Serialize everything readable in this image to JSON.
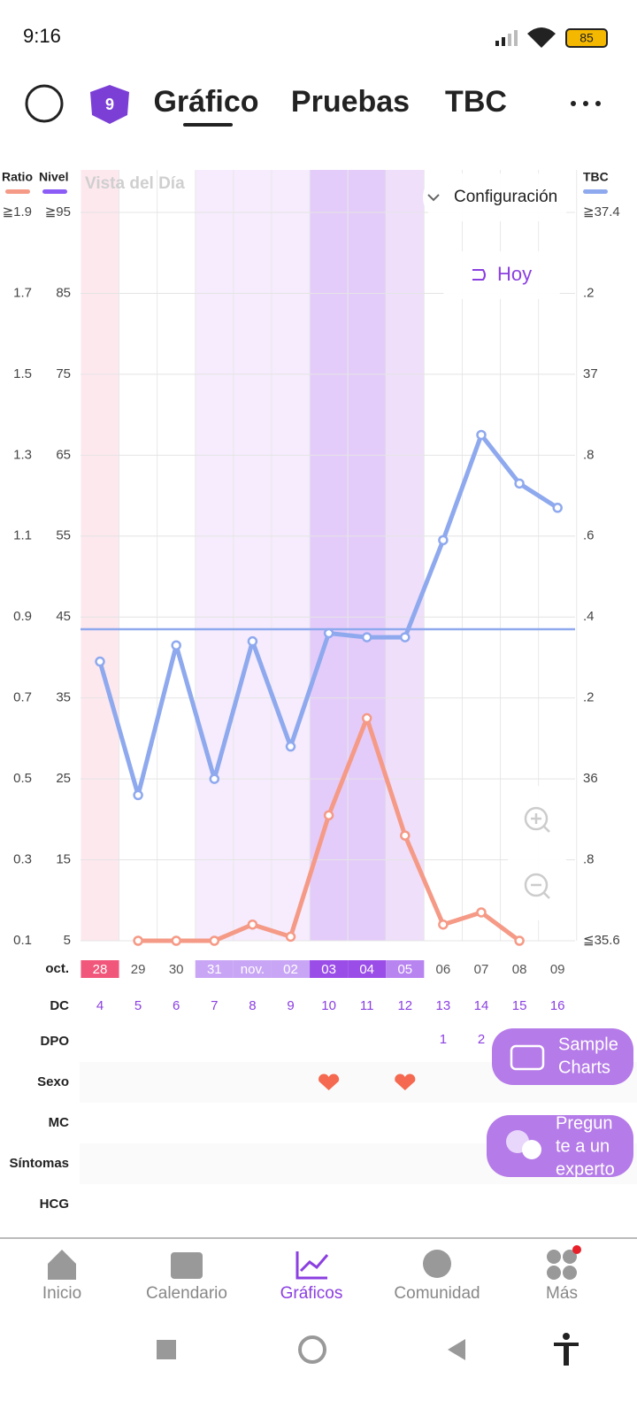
{
  "status_bar": {
    "time": "9:16",
    "battery": "85"
  },
  "tabs": {
    "badge": "9",
    "items": [
      "Gráfico",
      "Pruebas",
      "TBC"
    ]
  },
  "chart_data": {
    "type": "line",
    "title": "Vista del Día",
    "y2_label": "TBC",
    "ylim": [
      0.1,
      1.9
    ],
    "yticks": [
      {
        "value": 1.9,
        "label": "≧1.9"
      },
      1.7,
      1.5,
      1.3,
      1.1,
      0.9,
      0.7,
      0.5,
      0.3,
      0.1
    ],
    "nivel_axis": {
      "label": "Nivel",
      "color": "#8b5cf6",
      "lim": [
        5,
        95
      ],
      "ticks": [
        {
          "value": 95,
          "label": "≧95"
        },
        85,
        75,
        65,
        55,
        45,
        35,
        25,
        15,
        5
      ]
    },
    "y2lim": [
      35.6,
      37.4
    ],
    "y2ticks": [
      {
        "value": 37.4,
        "label": "≧37.4"
      },
      {
        "value": 37.2,
        "label": ".2"
      },
      37,
      {
        "value": 36.8,
        "label": ".8"
      },
      {
        "value": 36.6,
        "label": ".6"
      },
      {
        "value": 36.4,
        "label": ".4"
      },
      {
        "value": 36.2,
        "label": ".2"
      },
      36,
      {
        "value": 35.8,
        "label": ".8"
      },
      {
        "value": 35.6,
        "label": "≦35.6"
      }
    ],
    "month_label": "oct.",
    "categories": [
      "28",
      "29",
      "30",
      "31",
      "nov.",
      "02",
      "03",
      "04",
      "05",
      "06",
      "07",
      "08",
      "09"
    ],
    "day_colors": [
      "#fde8ee",
      null,
      null,
      "#f6ecfd",
      "#f6ecfd",
      "#f6ecfd",
      "#e4ccfa",
      "#e4ccfa",
      "#efdffb",
      null,
      null,
      null,
      null
    ],
    "date_pill_colors": [
      "#f0577a",
      null,
      null,
      "#c9a6f5",
      "#c9a6f5",
      "#c9a6f5",
      "#9b4de8",
      "#9b4de8",
      "#b884f0",
      null,
      null,
      null,
      null
    ],
    "series": [
      {
        "name": "Ratio",
        "color": "#f59a86",
        "values": [
          null,
          0.1,
          0.1,
          0.1,
          0.14,
          0.11,
          0.41,
          0.65,
          0.36,
          0.14,
          0.17,
          0.1,
          null
        ]
      },
      {
        "name": "TBC",
        "color": "#8fa9ee",
        "axis": "y2",
        "values": [
          36.29,
          35.96,
          36.33,
          36.0,
          36.34,
          36.08,
          36.36,
          36.35,
          36.35,
          36.59,
          36.85,
          36.73,
          36.67
        ]
      }
    ],
    "coverline": 36.37,
    "grid": true
  },
  "rows": {
    "labels": [
      "DC",
      "DPO",
      "Sexo",
      "MC",
      "Síntomas",
      "HCG"
    ],
    "dc": [
      "4",
      "5",
      "6",
      "7",
      "8",
      "9",
      "10",
      "11",
      "12",
      "13",
      "14",
      "15",
      "16"
    ],
    "dpo": [
      null,
      null,
      null,
      null,
      null,
      null,
      null,
      null,
      null,
      "1",
      "2",
      null,
      null
    ],
    "sexo": [
      false,
      false,
      false,
      false,
      false,
      false,
      true,
      false,
      true,
      false,
      false,
      false,
      false
    ]
  },
  "buttons": {
    "config": "Configuración",
    "today": "Hoy",
    "sample": [
      "Sample",
      "Charts"
    ],
    "expert": [
      "Pregun",
      "te a un",
      "experto"
    ]
  },
  "bottom_nav": {
    "items": [
      "Inicio",
      "Calendario",
      "Gráficos",
      "Comunidad",
      "Más"
    ],
    "active": 2
  }
}
